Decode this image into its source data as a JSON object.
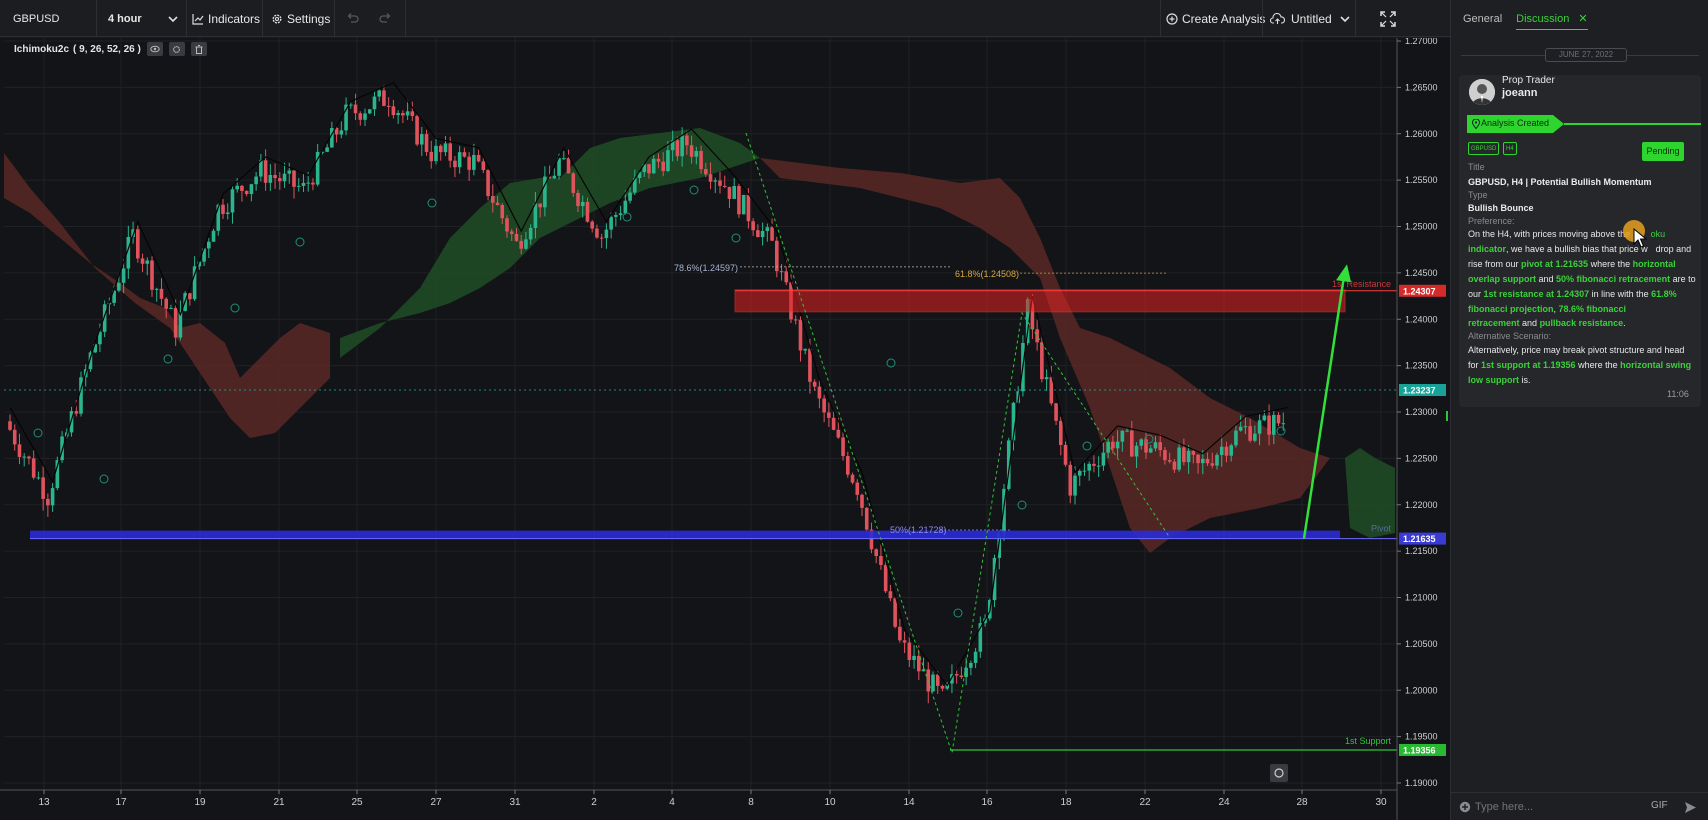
{
  "toolbar": {
    "symbol": "GBPUSD",
    "timeframe": "4 hour",
    "indicators_label": "Indicators",
    "settings_label": "Settings",
    "create_analysis_label": "Create Analysis",
    "save_name": "Untitled"
  },
  "indicator": {
    "name": "Ichimoku2c",
    "params": "( 9, 26, 52, 26 )"
  },
  "chart_data": {
    "type": "candlestick",
    "symbol": "GBPUSD",
    "timeframe": "H4",
    "ylim": [
      1.19,
      1.27
    ],
    "y_ticks": [
      "1.27000",
      "1.26500",
      "1.26000",
      "1.25500",
      "1.25000",
      "1.24500",
      "1.24000",
      "1.23500",
      "1.23000",
      "1.22500",
      "1.22000",
      "1.21500",
      "1.21000",
      "1.20500",
      "1.20000",
      "1.19500",
      "1.19000"
    ],
    "x_ticks": [
      "13",
      "17",
      "19",
      "21",
      "25",
      "27",
      "31",
      "2",
      "4",
      "8",
      "10",
      "14",
      "16",
      "18",
      "22",
      "24",
      "28",
      "30"
    ],
    "close_path": [
      {
        "x": "13",
        "y": 1.229
      },
      {
        "x": "14",
        "y": 1.221
      },
      {
        "x": "17",
        "y": 1.236
      },
      {
        "x": "18",
        "y": 1.249
      },
      {
        "x": "19",
        "y": 1.239
      },
      {
        "x": "21",
        "y": 1.252
      },
      {
        "x": "24",
        "y": 1.256
      },
      {
        "x": "25",
        "y": 1.254
      },
      {
        "x": "27",
        "y": 1.262
      },
      {
        "x": "30",
        "y": 1.264
      },
      {
        "x": "31",
        "y": 1.258
      },
      {
        "x": "1",
        "y": 1.257
      },
      {
        "x": "2",
        "y": 1.248
      },
      {
        "x": "3",
        "y": 1.257
      },
      {
        "x": "4",
        "y": 1.249
      },
      {
        "x": "7",
        "y": 1.256
      },
      {
        "x": "8",
        "y": 1.259
      },
      {
        "x": "9",
        "y": 1.254
      },
      {
        "x": "10",
        "y": 1.248
      },
      {
        "x": "11",
        "y": 1.232
      },
      {
        "x": "13",
        "y": 1.222
      },
      {
        "x": "14",
        "y": 1.205
      },
      {
        "x": "15",
        "y": 1.199
      },
      {
        "x": "16",
        "y": 1.207
      },
      {
        "x": "17",
        "y": 1.241
      },
      {
        "x": "18",
        "y": 1.222
      },
      {
        "x": "21",
        "y": 1.227
      },
      {
        "x": "22",
        "y": 1.226
      },
      {
        "x": "23",
        "y": 1.224
      },
      {
        "x": "24",
        "y": 1.228
      },
      {
        "x": "27",
        "y": 1.229
      }
    ],
    "levels": {
      "resistance": {
        "label": "1st Resistance",
        "value": 1.24307,
        "value_text": "1.24307"
      },
      "current": {
        "value": 1.23237,
        "value_text": "1.23237"
      },
      "pivot": {
        "label": "Pivot",
        "value": 1.21635,
        "value_text": "1.21635"
      },
      "support": {
        "label": "1st Support",
        "value": 1.19356,
        "value_text": "1.19356"
      }
    },
    "fib_labels": [
      {
        "text": "78.6%(1.24597)",
        "value": 1.24597
      },
      {
        "text": "61.8%(1.24508)",
        "value": 1.24508
      },
      {
        "text": "50%(1.21728)",
        "value": 1.21728
      }
    ],
    "projection": {
      "from": 1.21635,
      "to": 1.2455
    },
    "colors": {
      "background": "#131417",
      "up": "#2bb58d",
      "down": "#e0535d",
      "resistance": "#e52222",
      "pivot": "#2b2bd6",
      "support": "#2fc43a",
      "cloud_bull": "#1f4a25",
      "cloud_bear": "#5a2826",
      "current_price": "#1fb2a6"
    }
  },
  "panel": {
    "tabs": [
      "General",
      "Discussion"
    ],
    "active_tab": "Discussion",
    "date_separator": "JUNE 27, 2022",
    "author_role": "Prop Trader",
    "author_name": "joeann",
    "event_label": "Analysis Created",
    "tags": [
      "GBPUSD",
      "H4"
    ],
    "status": "Pending",
    "title_label": "Title",
    "title_value": "GBPUSD, H4 | Potential Bullish Momentum",
    "type_label": "Type",
    "type_value": "Bullish Bounce",
    "preference_label": "Preference:",
    "pref_text_1": "On the H4, with prices moving above the",
    "pref_text_1b": "oku",
    "pref_text_2a": "indicator",
    "pref_text_2b": ", we have a bullish bias that price w",
    "pref_text_2c": "drop and",
    "pref_text_3a": "rise from our ",
    "pref_text_3b": "pivot at 1.21635",
    "pref_text_3c": " where the ",
    "pref_text_3d": "horizontal",
    "pref_text_4a": "overlap support",
    "pref_text_4b": " and ",
    "pref_text_4c": "50% fibonacci retracement",
    "pref_text_4d": " are to",
    "pref_text_5a": "our ",
    "pref_text_5b": "1st resistance at 1.24307",
    "pref_text_5c": " in line with the ",
    "pref_text_5d": "61.8%",
    "pref_text_6a": "fibonacci projection",
    "pref_text_6b": ", ",
    "pref_text_6c": "78.6% fibonacci",
    "pref_text_7a": "retracement",
    "pref_text_7b": " and ",
    "pref_text_7c": "pullback resistance",
    "pref_text_7d": ".",
    "alt_label": "Alternative Scenario:",
    "alt_text_1": "Alternatively, price may break pivot structure and head",
    "alt_text_2a": "for ",
    "alt_text_2b": "1st support at 1.19356",
    "alt_text_2c": " where the ",
    "alt_text_2d": "horizontal swing",
    "alt_text_3a": "low support",
    "alt_text_3b": " is.",
    "time": "11:06",
    "input_placeholder": "Type here...",
    "gif_label": "GIF"
  }
}
